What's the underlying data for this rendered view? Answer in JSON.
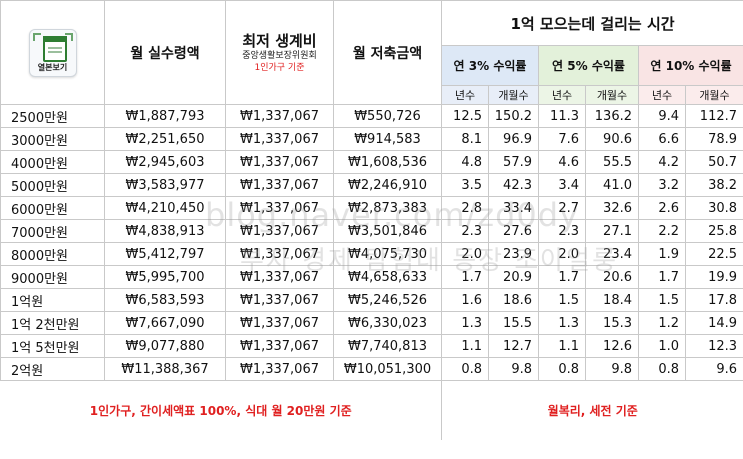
{
  "logo": {
    "label": "열본보기"
  },
  "header": {
    "net_monthly": "월 실수령액",
    "living_cost_title": "최저 생계비",
    "living_cost_source": "중앙생활보장위원회",
    "living_cost_note": "1인가구 기준",
    "monthly_saving": "월 저축금액",
    "goal_title": "1억 모으는데 걸리는 시간",
    "groups": [
      "연 3% 수익률",
      "연 5% 수익률",
      "연 10% 수익률"
    ],
    "sub_years": "년수",
    "sub_months": "개월수"
  },
  "rows": [
    {
      "salary": "2500만원",
      "net": "₩1,887,793",
      "cost": "₩1,337,067",
      "save": "₩550,726",
      "y3": "12.5",
      "m3": "150.2",
      "y5": "11.3",
      "m5": "136.2",
      "y10": "9.4",
      "m10": "112.7"
    },
    {
      "salary": "3000만원",
      "net": "₩2,251,650",
      "cost": "₩1,337,067",
      "save": "₩914,583",
      "y3": "8.1",
      "m3": "96.9",
      "y5": "7.6",
      "m5": "90.6",
      "y10": "6.6",
      "m10": "78.9"
    },
    {
      "salary": "4000만원",
      "net": "₩2,945,603",
      "cost": "₩1,337,067",
      "save": "₩1,608,536",
      "y3": "4.8",
      "m3": "57.9",
      "y5": "4.6",
      "m5": "55.5",
      "y10": "4.2",
      "m10": "50.7"
    },
    {
      "salary": "5000만원",
      "net": "₩3,583,977",
      "cost": "₩1,337,067",
      "save": "₩2,246,910",
      "y3": "3.5",
      "m3": "42.3",
      "y5": "3.4",
      "m5": "41.0",
      "y10": "3.2",
      "m10": "38.2"
    },
    {
      "salary": "6000만원",
      "net": "₩4,210,450",
      "cost": "₩1,337,067",
      "save": "₩2,873,383",
      "y3": "2.8",
      "m3": "33.4",
      "y5": "2.7",
      "m5": "32.6",
      "y10": "2.6",
      "m10": "30.8"
    },
    {
      "salary": "7000만원",
      "net": "₩4,838,913",
      "cost": "₩1,337,067",
      "save": "₩3,501,846",
      "y3": "2.3",
      "m3": "27.6",
      "y5": "2.3",
      "m5": "27.1",
      "y10": "2.2",
      "m10": "25.8"
    },
    {
      "salary": "8000만원",
      "net": "₩5,412,797",
      "cost": "₩1,337,067",
      "save": "₩4,075,730",
      "y3": "2.0",
      "m3": "23.9",
      "y5": "2.0",
      "m5": "23.4",
      "y10": "1.9",
      "m10": "22.5"
    },
    {
      "salary": "9000만원",
      "net": "₩5,995,700",
      "cost": "₩1,337,067",
      "save": "₩4,658,633",
      "y3": "1.7",
      "m3": "20.9",
      "y5": "1.7",
      "m5": "20.6",
      "y10": "1.7",
      "m10": "19.9"
    },
    {
      "salary": "1억원",
      "net": "₩6,583,593",
      "cost": "₩1,337,067",
      "save": "₩5,246,526",
      "y3": "1.6",
      "m3": "18.6",
      "y5": "1.5",
      "m5": "18.4",
      "y10": "1.5",
      "m10": "17.8"
    },
    {
      "salary": "1억 2천만원",
      "net": "₩7,667,090",
      "cost": "₩1,337,067",
      "save": "₩6,330,023",
      "y3": "1.3",
      "m3": "15.5",
      "y5": "1.3",
      "m5": "15.3",
      "y10": "1.2",
      "m10": "14.9"
    },
    {
      "salary": "1억 5천만원",
      "net": "₩9,077,880",
      "cost": "₩1,337,067",
      "save": "₩7,740,813",
      "y3": "1.1",
      "m3": "12.7",
      "y5": "1.1",
      "m5": "12.6",
      "y10": "1.0",
      "m10": "12.3"
    },
    {
      "salary": "2억원",
      "net": "₩11,388,367",
      "cost": "₩1,337,067",
      "save": "₩10,051,300",
      "y3": "0.8",
      "m3": "9.8",
      "y5": "0.8",
      "m5": "9.8",
      "y10": "0.8",
      "m10": "9.6"
    }
  ],
  "footer": {
    "left_note": "1인가구, 간이세액표 100%, 식대 월 20만원 기준",
    "right_note": "월복리, 세전 기준"
  },
  "watermark": {
    "line1": "blog.naver.com/zd0dy",
    "line2": "부자 경제 탐험대 동장 조아얼룽"
  },
  "colors": {
    "rate3_bg": "#dde8f6",
    "rate5_bg": "#e3f1da",
    "rate10_bg": "#f9e4e4",
    "note_red": "#e02020"
  }
}
